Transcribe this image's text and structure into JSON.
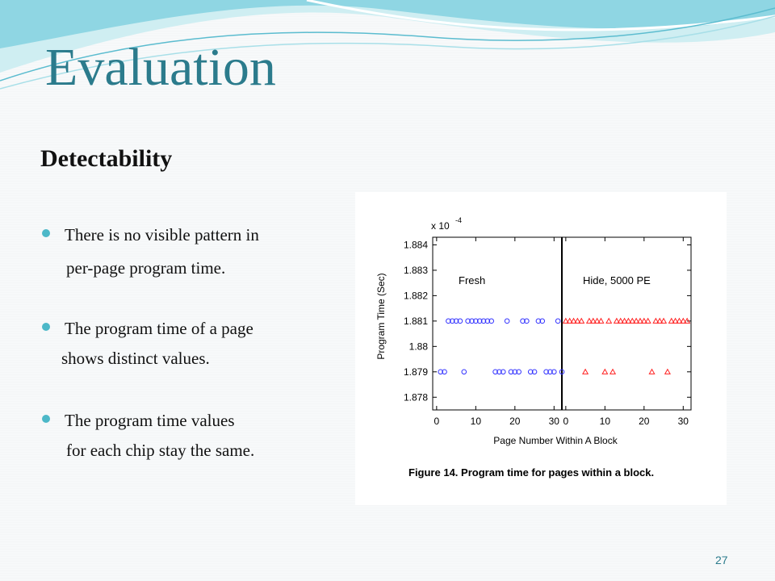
{
  "slide": {
    "title": "Evaluation",
    "subtitle": "Detectability",
    "page_number": "27"
  },
  "bullets": [
    {
      "line1": "There is no visible pattern in",
      "line2": "per-page program time."
    },
    {
      "line1": "The program time of a page",
      "line2": "shows distinct values."
    },
    {
      "line1": "The program time values",
      "line2": "for each chip stay the same."
    }
  ],
  "figure": {
    "caption": "Figure 14.   Program time for pages within a block."
  },
  "colors": {
    "title": "#2b7b8c",
    "bullet_dot": "#4cb8c8",
    "fresh_marker": "#3333ff",
    "hide_marker": "#ff2222"
  },
  "chart_data": {
    "type": "scatter",
    "ylabel": "Program Time (Sec)",
    "xlabel": "Page Number Within A Block",
    "y_exponent_label": "x 10",
    "y_exponent_power": "-4",
    "ylim": [
      1.8775,
      1.8843
    ],
    "yticks": [
      "1.884",
      "1.883",
      "1.882",
      "1.881",
      "1.88",
      "1.879",
      "1.878"
    ],
    "ytick_values": [
      1.884,
      1.883,
      1.882,
      1.881,
      1.88,
      1.879,
      1.878
    ],
    "panels": [
      {
        "name": "Fresh",
        "marker": "circle",
        "xlim": [
          -1,
          32
        ],
        "xticks": [
          "0",
          "10",
          "20",
          "30"
        ],
        "xtick_values": [
          0,
          10,
          20,
          30
        ],
        "points": [
          {
            "x": 1,
            "y": 1.879
          },
          {
            "x": 2,
            "y": 1.879
          },
          {
            "x": 7,
            "y": 1.879
          },
          {
            "x": 15,
            "y": 1.879
          },
          {
            "x": 16,
            "y": 1.879
          },
          {
            "x": 17,
            "y": 1.879
          },
          {
            "x": 19,
            "y": 1.879
          },
          {
            "x": 20,
            "y": 1.879
          },
          {
            "x": 21,
            "y": 1.879
          },
          {
            "x": 24,
            "y": 1.879
          },
          {
            "x": 25,
            "y": 1.879
          },
          {
            "x": 28,
            "y": 1.879
          },
          {
            "x": 29,
            "y": 1.879
          },
          {
            "x": 30,
            "y": 1.879
          },
          {
            "x": 32,
            "y": 1.879
          },
          {
            "x": 3,
            "y": 1.881
          },
          {
            "x": 4,
            "y": 1.881
          },
          {
            "x": 5,
            "y": 1.881
          },
          {
            "x": 6,
            "y": 1.881
          },
          {
            "x": 8,
            "y": 1.881
          },
          {
            "x": 9,
            "y": 1.881
          },
          {
            "x": 10,
            "y": 1.881
          },
          {
            "x": 11,
            "y": 1.881
          },
          {
            "x": 12,
            "y": 1.881
          },
          {
            "x": 13,
            "y": 1.881
          },
          {
            "x": 14,
            "y": 1.881
          },
          {
            "x": 18,
            "y": 1.881
          },
          {
            "x": 22,
            "y": 1.881
          },
          {
            "x": 23,
            "y": 1.881
          },
          {
            "x": 26,
            "y": 1.881
          },
          {
            "x": 27,
            "y": 1.881
          },
          {
            "x": 31,
            "y": 1.881
          }
        ]
      },
      {
        "name": "Hide, 5000 PE",
        "marker": "triangle",
        "xlim": [
          -1,
          32
        ],
        "xticks": [
          "0",
          "10",
          "20",
          "30"
        ],
        "xtick_values": [
          0,
          10,
          20,
          30
        ],
        "points": [
          {
            "x": 5,
            "y": 1.879
          },
          {
            "x": 10,
            "y": 1.879
          },
          {
            "x": 12,
            "y": 1.879
          },
          {
            "x": 22,
            "y": 1.879
          },
          {
            "x": 26,
            "y": 1.879
          },
          {
            "x": 0,
            "y": 1.881
          },
          {
            "x": 1,
            "y": 1.881
          },
          {
            "x": 2,
            "y": 1.881
          },
          {
            "x": 3,
            "y": 1.881
          },
          {
            "x": 4,
            "y": 1.881
          },
          {
            "x": 6,
            "y": 1.881
          },
          {
            "x": 7,
            "y": 1.881
          },
          {
            "x": 8,
            "y": 1.881
          },
          {
            "x": 9,
            "y": 1.881
          },
          {
            "x": 11,
            "y": 1.881
          },
          {
            "x": 13,
            "y": 1.881
          },
          {
            "x": 14,
            "y": 1.881
          },
          {
            "x": 15,
            "y": 1.881
          },
          {
            "x": 16,
            "y": 1.881
          },
          {
            "x": 17,
            "y": 1.881
          },
          {
            "x": 18,
            "y": 1.881
          },
          {
            "x": 19,
            "y": 1.881
          },
          {
            "x": 20,
            "y": 1.881
          },
          {
            "x": 21,
            "y": 1.881
          },
          {
            "x": 23,
            "y": 1.881
          },
          {
            "x": 24,
            "y": 1.881
          },
          {
            "x": 25,
            "y": 1.881
          },
          {
            "x": 27,
            "y": 1.881
          },
          {
            "x": 28,
            "y": 1.881
          },
          {
            "x": 29,
            "y": 1.881
          },
          {
            "x": 30,
            "y": 1.881
          },
          {
            "x": 31,
            "y": 1.881
          }
        ]
      }
    ]
  }
}
